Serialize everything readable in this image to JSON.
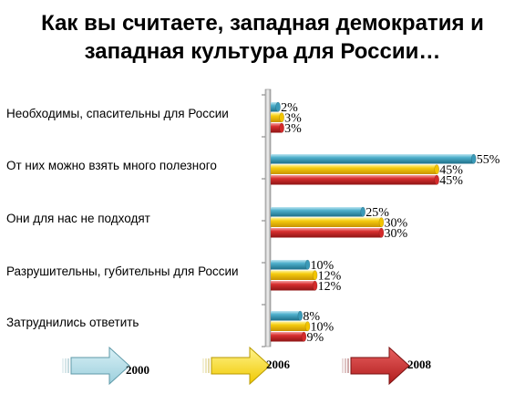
{
  "title": {
    "line1": "Как вы считаете, западная демократия и",
    "line2": "западная культура для России…"
  },
  "chart_data": {
    "type": "bar",
    "orientation": "horizontal",
    "categories": [
      "Необходимы, спасительны для России",
      "От них можно взять много полезного",
      "Они для нас не подходят",
      "Разрушительны, губительны для России",
      "Затруднились ответить"
    ],
    "series": [
      {
        "name": "2000",
        "color": "#3a9ab8",
        "values": [
          2,
          55,
          25,
          10,
          8
        ],
        "labels": [
          "2%",
          "55%",
          "25%",
          "10%",
          "8%"
        ]
      },
      {
        "name": "2006",
        "color": "#f2c400",
        "values": [
          3,
          45,
          30,
          12,
          10
        ],
        "labels": [
          "3%",
          "45%",
          "30%",
          "12%",
          "10%"
        ]
      },
      {
        "name": "2008",
        "color": "#d42a2a",
        "values": [
          3,
          45,
          30,
          12,
          9
        ],
        "labels": [
          "3%",
          "45%",
          "30%",
          "12%",
          "9%"
        ]
      }
    ],
    "xlim": [
      0,
      60
    ],
    "grid": false,
    "legend": "bottom, arrow shapes"
  }
}
